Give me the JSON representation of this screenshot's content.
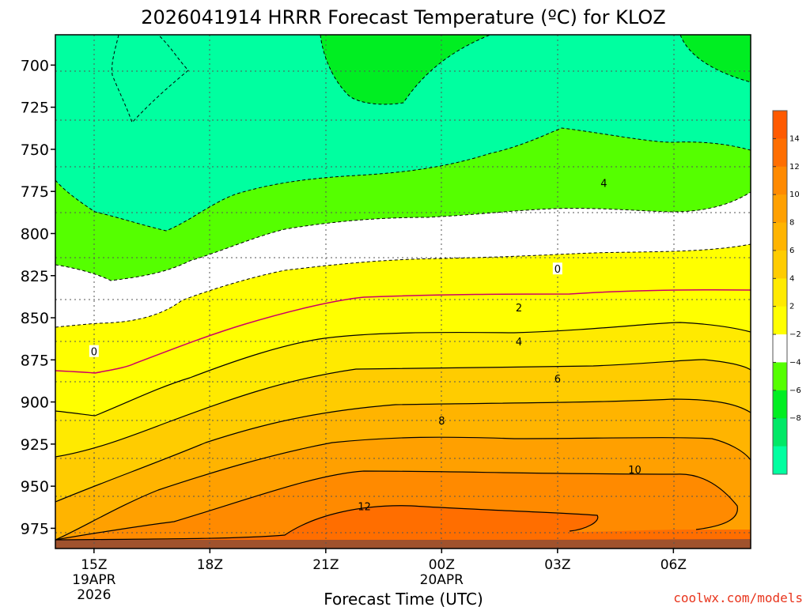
{
  "watermark": "coolwx.com/models",
  "chart_data": {
    "type": "heatmap",
    "title": "2026041914 HRRR Forecast Temperature (ºC) for KLOZ",
    "xlabel": "Forecast Time (UTC)",
    "ylabel": "",
    "x_ticks": [
      {
        "label": "15Z",
        "sub": [
          "19APR",
          "2026"
        ]
      },
      {
        "label": "18Z",
        "sub": []
      },
      {
        "label": "21Z",
        "sub": []
      },
      {
        "label": "00Z",
        "sub": [
          "20APR"
        ]
      },
      {
        "label": "03Z",
        "sub": []
      },
      {
        "label": "06Z",
        "sub": []
      }
    ],
    "xlim_hours": [
      14,
      32
    ],
    "y_axis": {
      "reversed": true,
      "ticks": [
        700,
        725,
        750,
        775,
        800,
        825,
        850,
        875,
        900,
        925,
        950,
        975
      ],
      "ylim": [
        682,
        987
      ]
    },
    "grid": "dotted",
    "colorbar": {
      "labels": [
        "14",
        "12",
        "10",
        "8",
        "6",
        "4",
        "2",
        "−2",
        "−4",
        "−6",
        "−8"
      ],
      "bands": [
        {
          "range": "14 to 16",
          "color": "#ff5a00"
        },
        {
          "range": "12 to 14",
          "color": "#ff6e00"
        },
        {
          "range": "10 to 12",
          "color": "#ff8a00"
        },
        {
          "range": "8 to 10",
          "color": "#ffa000"
        },
        {
          "range": "6 to 8",
          "color": "#ffb400"
        },
        {
          "range": "4 to 6",
          "color": "#ffcc00"
        },
        {
          "range": "2 to 4",
          "color": "#ffea00"
        },
        {
          "range": "0 to 2",
          "color": "#ffff00"
        },
        {
          "range": "-2 to 2",
          "color": "#ffffff"
        },
        {
          "range": "-4 to -2",
          "color": "#55ff00"
        },
        {
          "range": "-6 to -4",
          "color": "#00ee22"
        },
        {
          "range": "-8 to -6",
          "color": "#00e866"
        },
        {
          "range": "-10 to -8",
          "color": "#00ffa0"
        }
      ]
    },
    "contour_labels": [
      {
        "text": "0",
        "hour": 15.0,
        "p": 870
      },
      {
        "text": "0",
        "hour": 27.0,
        "p": 821
      },
      {
        "text": "2",
        "hour": 26.0,
        "p": 844
      },
      {
        "text": "4",
        "hour": 26.0,
        "p": 864
      },
      {
        "text": "6",
        "hour": 27.0,
        "p": 886
      },
      {
        "text": "8",
        "hour": 24.0,
        "p": 911
      },
      {
        "text": "10",
        "hour": 29.0,
        "p": 940
      },
      {
        "text": "12",
        "hour": 22.0,
        "p": 962
      },
      {
        "text": "4",
        "hour": 28.2,
        "p": 770
      }
    ],
    "bands": [
      {
        "name": "surface/ground",
        "color": "#a0522d"
      },
      {
        "range_c": [
          12,
          14
        ],
        "color": "#ff6e00"
      },
      {
        "range_c": [
          10,
          12
        ],
        "color": "#ff8a00"
      },
      {
        "range_c": [
          8,
          10
        ],
        "color": "#ffa000"
      },
      {
        "range_c": [
          6,
          8
        ],
        "color": "#ffb400"
      },
      {
        "range_c": [
          4,
          6
        ],
        "color": "#ffcc00"
      },
      {
        "range_c": [
          2,
          4
        ],
        "color": "#ffea00"
      },
      {
        "range_c": [
          0,
          2
        ],
        "color": "#ffff00"
      },
      {
        "range_c": [
          -2,
          2
        ],
        "color": "#ffffff"
      },
      {
        "range_c": [
          -4,
          -2
        ],
        "color": "#55ff00"
      },
      {
        "range_c": [
          -6,
          -4
        ],
        "color": "#00ee22"
      },
      {
        "range_c": [
          -8,
          -6
        ],
        "color": "#00e866"
      },
      {
        "range_c": [
          -10,
          -8
        ],
        "color": "#00ffa0"
      }
    ]
  }
}
